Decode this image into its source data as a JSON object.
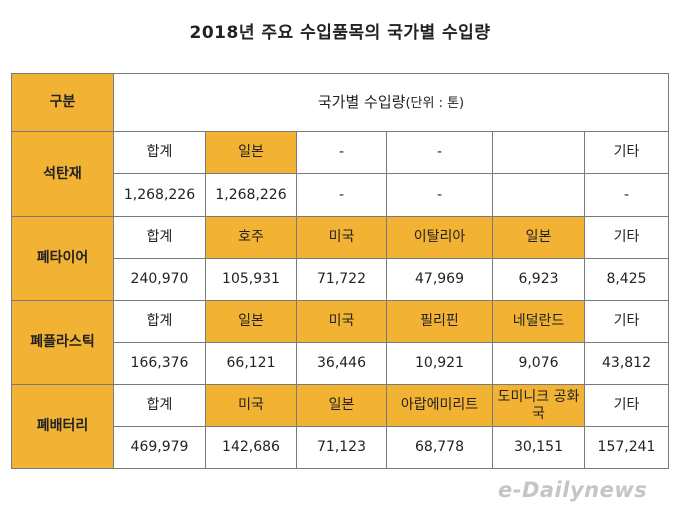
{
  "title": "2018년 주요 수입품목의 국가별 수입량",
  "header": {
    "category_label": "구분",
    "main_label": "국가별 수입량",
    "unit": "(단위 : 톤)"
  },
  "rows": [
    {
      "category": "석탄재",
      "countries": [
        "합계",
        "일본",
        "-",
        "-",
        "",
        "기타"
      ],
      "values": [
        "1,268,226",
        "1,268,226",
        "-",
        "-",
        "",
        "-"
      ]
    },
    {
      "category": "폐타이어",
      "countries": [
        "합계",
        "호주",
        "미국",
        "이탈리아",
        "일본",
        "기타"
      ],
      "values": [
        "240,970",
        "105,931",
        "71,722",
        "47,969",
        "6,923",
        "8,425"
      ]
    },
    {
      "category": "폐플라스틱",
      "countries": [
        "합계",
        "일본",
        "미국",
        "필리핀",
        "네덜란드",
        "기타"
      ],
      "values": [
        "166,376",
        "66,121",
        "36,446",
        "10,921",
        "9,076",
        "43,812"
      ]
    },
    {
      "category": "폐배터리",
      "countries": [
        "합계",
        "미국",
        "일본",
        "아랍에미리트",
        "도미니크 공화국",
        "기타"
      ],
      "values": [
        "469,979",
        "142,686",
        "71,123",
        "68,778",
        "30,151",
        "157,241"
      ]
    }
  ],
  "watermark": "e-Dailynews",
  "colors": {
    "highlight": "#f2b233",
    "border": "#7a7a7a"
  }
}
